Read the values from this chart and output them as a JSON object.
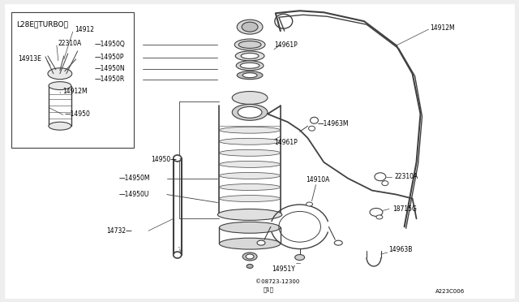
{
  "bg_color": "#ffffff",
  "line_color": "#404040",
  "diagram_ref": "A223C006",
  "copyright": "© 08723-12300\n、1）",
  "inset_label": "L28E（TURBO）",
  "page_bg": "#eeeeee"
}
